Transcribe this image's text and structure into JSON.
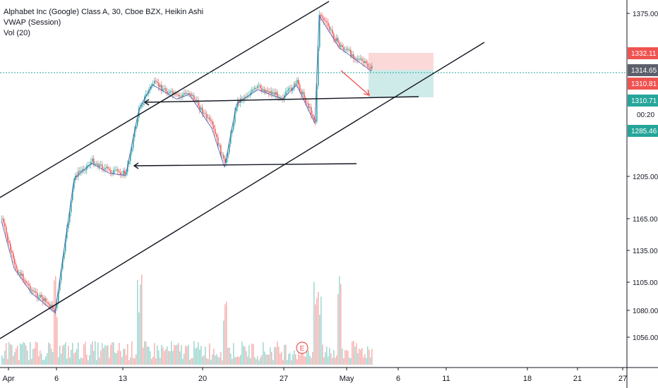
{
  "header": {
    "symbol_line": "Alphabet Inc (Google) Class A, 30, Cboe BZX, Heikin Ashi",
    "indicator_1": "VWAP (Session)",
    "indicator_2": "Vol (20)"
  },
  "chart_data": {
    "type": "candlestick",
    "y_axis": {
      "ticks": [
        "1375.00",
        "1205.00",
        "1165.00",
        "1135.00",
        "1105.00",
        "1080.00",
        "1056.00"
      ],
      "scale": "log"
    },
    "x_axis": {
      "ticks": [
        "Apr",
        "6",
        "13",
        "20",
        "27",
        "May",
        "6",
        "11",
        "18",
        "21",
        "27"
      ]
    },
    "price_badges": [
      {
        "value": "1332.11",
        "color": "#ef5350"
      },
      {
        "value": "1314.65",
        "color": "#5d606b"
      },
      {
        "value": "1310.81",
        "color": "#ef5350"
      },
      {
        "value": "1310.71",
        "color": "#26a69a"
      },
      {
        "value": "1285.46",
        "color": "#26a69a"
      }
    ],
    "countdown": "00:20",
    "price_path": [
      [
        "Apr 1",
        1165
      ],
      [
        "Apr 2",
        1120
      ],
      [
        "Apr 3",
        1097
      ],
      [
        "Apr 6",
        1080
      ],
      [
        "Apr 7",
        1205
      ],
      [
        "Apr 8",
        1220
      ],
      [
        "Apr 9",
        1210
      ],
      [
        "Apr 13",
        1208
      ],
      [
        "Apr 14",
        1275
      ],
      [
        "Apr 15",
        1300
      ],
      [
        "Apr 17",
        1285
      ],
      [
        "Apr 20",
        1290
      ],
      [
        "Apr 21",
        1255
      ],
      [
        "Apr 22",
        1216
      ],
      [
        "Apr 23",
        1280
      ],
      [
        "Apr 24",
        1295
      ],
      [
        "Apr 27",
        1285
      ],
      [
        "Apr 28",
        1300
      ],
      [
        "Apr 29",
        1260
      ],
      [
        "Apr 30",
        1375
      ],
      [
        "May 1",
        1340
      ],
      [
        "May 4",
        1315
      ]
    ],
    "volume_peak_dates": [
      "Apr 6",
      "Apr 14",
      "Apr 22",
      "Apr 29",
      "Apr 30",
      "May 1"
    ],
    "earnings_marker": "E",
    "colors": {
      "up": "#26a69a",
      "down": "#ef5350",
      "vwap": "#3f51b5",
      "trendline": "#131722",
      "arrow": "#ef5350"
    }
  }
}
